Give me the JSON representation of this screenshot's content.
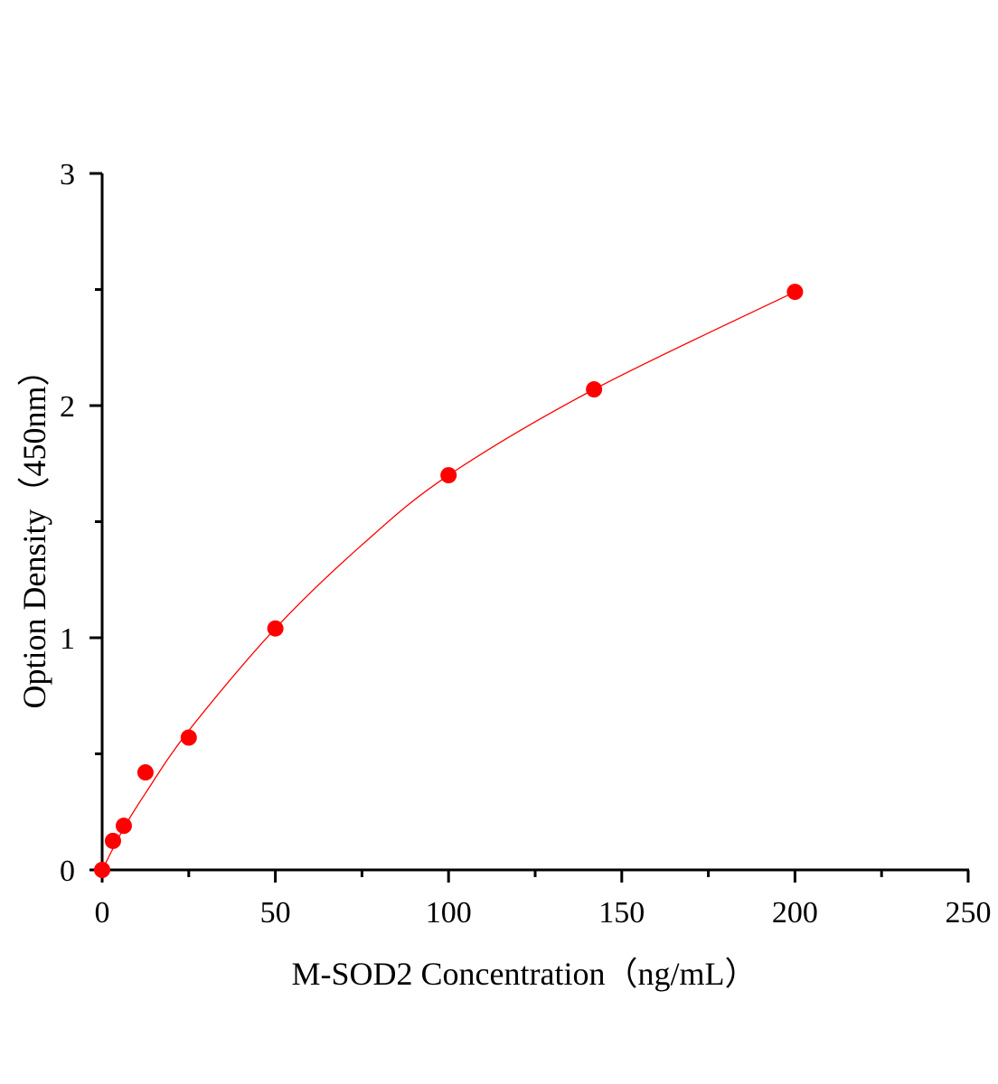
{
  "chart_data": {
    "type": "scatter",
    "title": "",
    "xlabel": "M-SOD2 Concentration（ng/mL）",
    "ylabel": "Option Density（450nm）",
    "xlim": [
      0,
      250
    ],
    "ylim": [
      0,
      3
    ],
    "xticks": [
      "0",
      "50",
      "100",
      "150",
      "200",
      "250"
    ],
    "yticks": [
      "0",
      "1",
      "2",
      "3"
    ],
    "grid": false,
    "legend": "none",
    "point_color": "#ff0000",
    "line_color": "#ff0000",
    "series": [
      {
        "x": [
          0,
          3.125,
          6.25,
          12.5,
          25,
          50,
          100,
          142,
          200
        ],
        "y": [
          0,
          0.125,
          0.19,
          0.42,
          0.57,
          1.04,
          1.7,
          2.07,
          2.49
        ]
      }
    ],
    "fit_curve": {
      "x": [
        0,
        6.25,
        12.5,
        25,
        50,
        75,
        100,
        142,
        200
      ],
      "y": [
        0,
        0.18,
        0.33,
        0.6,
        1.04,
        1.4,
        1.7,
        2.07,
        2.49
      ]
    }
  }
}
